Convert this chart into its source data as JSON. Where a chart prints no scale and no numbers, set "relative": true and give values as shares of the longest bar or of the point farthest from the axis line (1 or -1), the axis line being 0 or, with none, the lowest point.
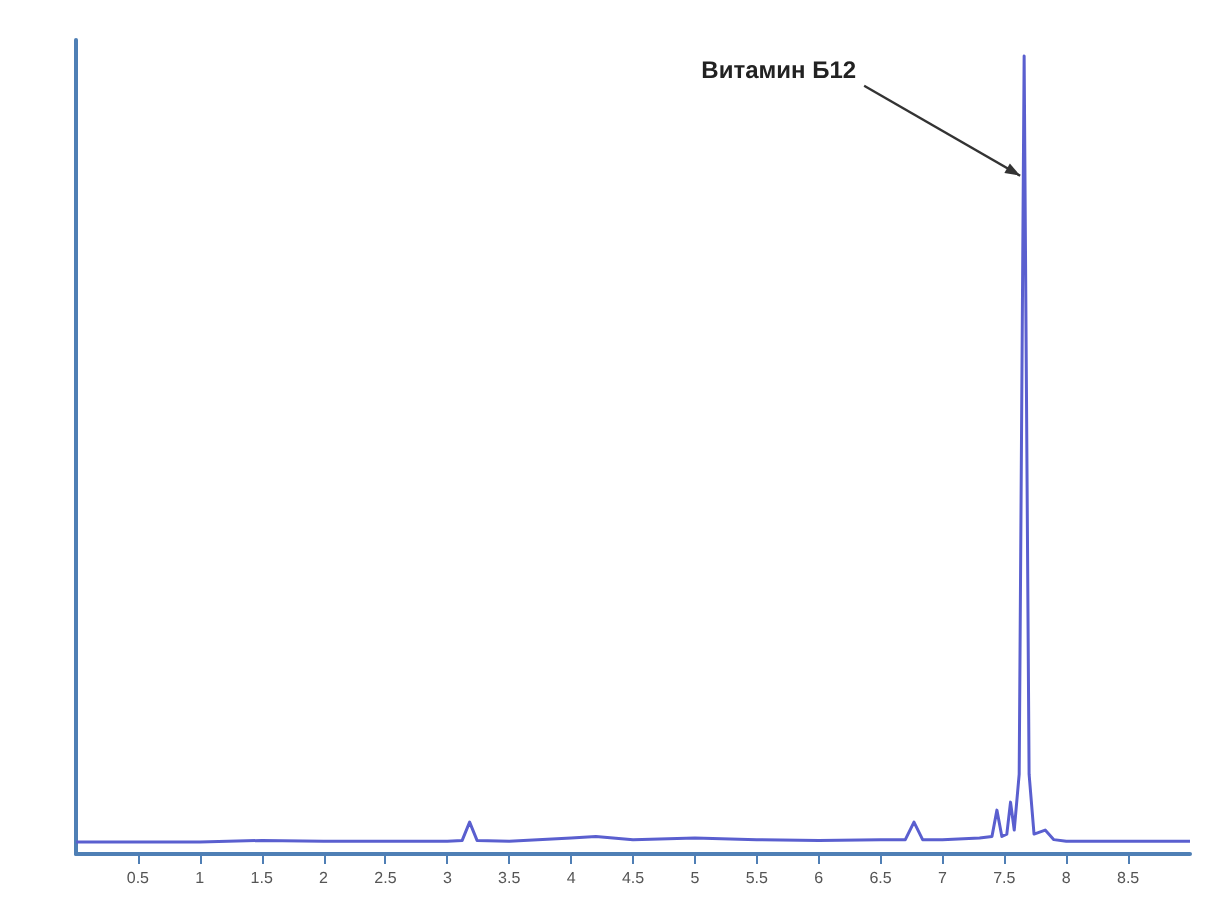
{
  "chart_data": {
    "type": "line",
    "relative": true,
    "xlim": [
      0,
      9
    ],
    "xticks": [
      0.5,
      1,
      1.5,
      2,
      2.5,
      3,
      3.5,
      4,
      4.5,
      5,
      5.5,
      6,
      6.5,
      7,
      7.5,
      8,
      8.5
    ],
    "grid": false,
    "marker": "none",
    "line_style": "solid",
    "series": [
      {
        "color": "#5a5fcf",
        "x": [
          0,
          0.5,
          1,
          1.5,
          2,
          2.5,
          3,
          3.12,
          3.18,
          3.24,
          3.5,
          4,
          4.2,
          4.5,
          5,
          5.5,
          6,
          6.5,
          6.7,
          6.77,
          6.84,
          7,
          7.3,
          7.4,
          7.44,
          7.48,
          7.52,
          7.55,
          7.58,
          7.62,
          7.66,
          7.7,
          7.74,
          7.83,
          7.9,
          8,
          8.5,
          9
        ],
        "values": [
          0.015,
          0.015,
          0.015,
          0.017,
          0.016,
          0.016,
          0.016,
          0.017,
          0.04,
          0.017,
          0.016,
          0.02,
          0.022,
          0.018,
          0.02,
          0.018,
          0.017,
          0.018,
          0.018,
          0.04,
          0.018,
          0.018,
          0.02,
          0.022,
          0.055,
          0.022,
          0.025,
          0.065,
          0.03,
          0.1,
          1,
          0.1,
          0.025,
          0.03,
          0.018,
          0.016,
          0.016,
          0.016
        ]
      }
    ],
    "annotations": [
      {
        "text": "Витамин Б12",
        "x": 7.66,
        "y": 0.85
      }
    ]
  }
}
